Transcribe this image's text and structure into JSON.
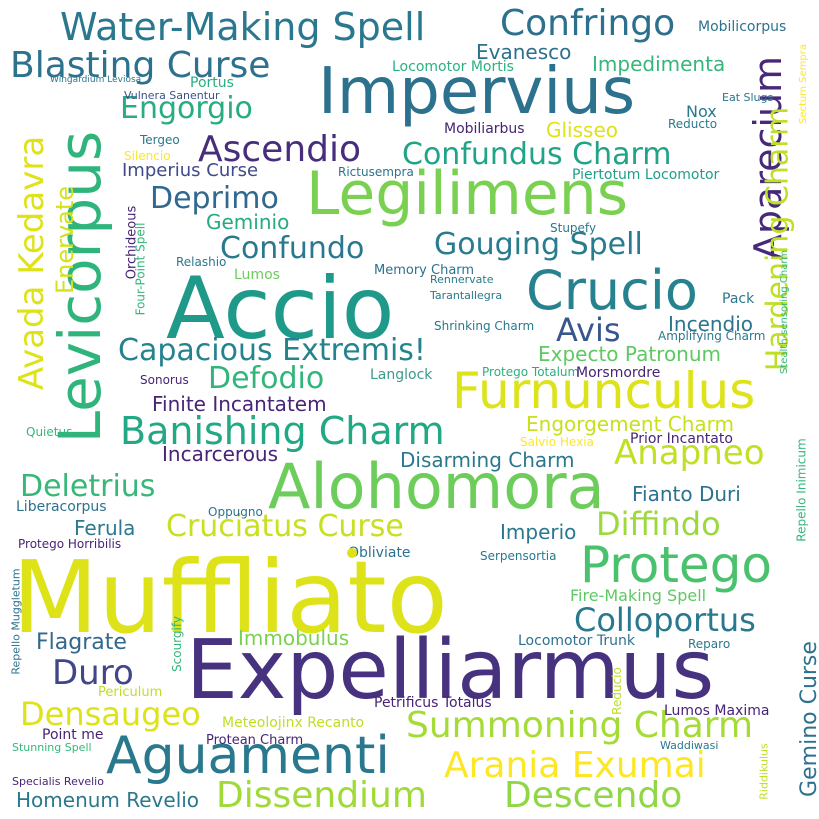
{
  "words": [
    {
      "text": "Muffliato",
      "color": "#dde318"
    },
    {
      "text": "Expelliarmus",
      "color": "#46327e"
    },
    {
      "text": "Accio",
      "color": "#1f9a8a"
    },
    {
      "text": "Levicorpus",
      "color": "#2fb47c"
    },
    {
      "text": "Legilimens",
      "color": "#7ad151"
    },
    {
      "text": "Alohomora",
      "color": "#6ccd5a"
    },
    {
      "text": "Impervius",
      "color": "#2c728e"
    },
    {
      "text": "Furnunculus",
      "color": "#dde318"
    },
    {
      "text": "Crucio",
      "color": "#26828e"
    },
    {
      "text": "Protego",
      "color": "#4ac16d"
    },
    {
      "text": "Aguamenti",
      "color": "#2a788e"
    },
    {
      "text": "Water-Making Spell",
      "color": "#2a788e"
    },
    {
      "text": "Blasting Curse",
      "color": "#2c728e"
    },
    {
      "text": "Confringo",
      "color": "#2d708e"
    },
    {
      "text": "Avada Kedavra",
      "color": "#dde318"
    },
    {
      "text": "Aparecium",
      "color": "#482878"
    },
    {
      "text": "Hardening Charm",
      "color": "#bddf26"
    },
    {
      "text": "Capacious Extremis!",
      "color": "#25838e"
    },
    {
      "text": "Banishing Charm",
      "color": "#22a884"
    },
    {
      "text": "Summoning Charm",
      "color": "#a5db36"
    },
    {
      "text": "Arania Exumai",
      "color": "#fde725"
    },
    {
      "text": "Dissendium",
      "color": "#a0da39"
    },
    {
      "text": "Descendo",
      "color": "#8fd744"
    },
    {
      "text": "Ascendio",
      "color": "#472d7b"
    },
    {
      "text": "Engorgio",
      "color": "#27ad81"
    },
    {
      "text": "Confundus Charm",
      "color": "#20a386"
    },
    {
      "text": "Gouging Spell",
      "color": "#287c8e"
    },
    {
      "text": "Confundo",
      "color": "#2a788e"
    },
    {
      "text": "Deprimo",
      "color": "#31688e"
    },
    {
      "text": "Avis",
      "color": "#39568c"
    },
    {
      "text": "Cruciatus Curse",
      "color": "#c8e020"
    },
    {
      "text": "Diffindo",
      "color": "#9bd93c"
    },
    {
      "text": "Anapneo",
      "color": "#c2df23"
    },
    {
      "text": "Defodio",
      "color": "#31b57b"
    },
    {
      "text": "Densaugeo",
      "color": "#dde318"
    },
    {
      "text": "Deletrius",
      "color": "#37b878"
    },
    {
      "text": "Colloportus",
      "color": "#2a788e"
    },
    {
      "text": "Duro",
      "color": "#404688"
    },
    {
      "text": "Evanesco",
      "color": "#2d708e"
    },
    {
      "text": "Impedimenta",
      "color": "#35b779"
    },
    {
      "text": "Enervate",
      "color": "#d5e21a"
    },
    {
      "text": "Gemino Curse",
      "color": "#2d718e"
    },
    {
      "text": "Glisseo",
      "color": "#dde318"
    },
    {
      "text": "Imperius Curse",
      "color": "#3e4a89"
    },
    {
      "text": "Geminio",
      "color": "#25ab82"
    },
    {
      "text": "Incendio",
      "color": "#2b758e"
    },
    {
      "text": "Expecto Patronum",
      "color": "#5ec962"
    },
    {
      "text": "Engorgement Charm",
      "color": "#c8e020"
    },
    {
      "text": "Disarming Charm",
      "color": "#2a788e"
    },
    {
      "text": "Finite Incantatem",
      "color": "#482475"
    },
    {
      "text": "Incarcerous",
      "color": "#482475"
    },
    {
      "text": "Fianto Duri",
      "color": "#2c728e"
    },
    {
      "text": "Imperio",
      "color": "#2a788e"
    },
    {
      "text": "Ferula",
      "color": "#2a788e"
    },
    {
      "text": "Flagrate",
      "color": "#31688e"
    },
    {
      "text": "Immobulus",
      "color": "#7ad151"
    },
    {
      "text": "Fire-Making Spell",
      "color": "#5ec962"
    },
    {
      "text": "Homenum Revelio",
      "color": "#2a788e"
    },
    {
      "text": "Mobilicorpus",
      "color": "#2c728e"
    },
    {
      "text": "Locomotor Mortis",
      "color": "#2ab07f"
    },
    {
      "text": "Portus",
      "color": "#27ad81"
    },
    {
      "text": "Vulnera Sanentur",
      "color": "#3b528b"
    },
    {
      "text": "Wingardium Leviosa",
      "color": "#2a788e"
    },
    {
      "text": "Nox",
      "color": "#2a788e"
    },
    {
      "text": "Eat Slugs",
      "color": "#2c728e"
    },
    {
      "text": "Sectum Sempra",
      "color": "#fde725"
    },
    {
      "text": "Reducto",
      "color": "#2a788e"
    },
    {
      "text": "Mobiliarbus",
      "color": "#482475"
    },
    {
      "text": "Tergeo",
      "color": "#2a788e"
    },
    {
      "text": "Silencio",
      "color": "#fde725"
    },
    {
      "text": "Rictusempra",
      "color": "#2c728e"
    },
    {
      "text": "Piertotum Locomotor",
      "color": "#1f9e89"
    },
    {
      "text": "Stupefy",
      "color": "#2a788e"
    },
    {
      "text": "Four-Point Spell",
      "color": "#35b779"
    },
    {
      "text": "Orchideous",
      "color": "#482475"
    },
    {
      "text": "Relashio",
      "color": "#2a788e"
    },
    {
      "text": "Lumos",
      "color": "#6ccd5a"
    },
    {
      "text": "Memory Charm",
      "color": "#2c728e"
    },
    {
      "text": "Rennervate",
      "color": "#2a788e"
    },
    {
      "text": "Tarantallegra",
      "color": "#2a788e"
    },
    {
      "text": "Pack",
      "color": "#2a788e"
    },
    {
      "text": "Amplifying Charm",
      "color": "#2a788e"
    },
    {
      "text": "Shrinking Charm",
      "color": "#2a788e"
    },
    {
      "text": "Stealth-sensoring Charm",
      "color": "#35b779"
    },
    {
      "text": "Sonorus",
      "color": "#482475"
    },
    {
      "text": "Langlock",
      "color": "#3b9a8a"
    },
    {
      "text": "Protego Totalum",
      "color": "#2ab07f"
    },
    {
      "text": "Morsmordre",
      "color": "#482475"
    },
    {
      "text": "Quietus",
      "color": "#35b779"
    },
    {
      "text": "Salvio Hexia",
      "color": "#fde725"
    },
    {
      "text": "Prior Incantato",
      "color": "#482475"
    },
    {
      "text": "Repello Inimicum",
      "color": "#35b779"
    },
    {
      "text": "Liberacorpus",
      "color": "#2c728e"
    },
    {
      "text": "Oppugno",
      "color": "#2c728e"
    },
    {
      "text": "Protego Horribilis",
      "color": "#482475"
    },
    {
      "text": "Obliviate",
      "color": "#2c728e"
    },
    {
      "text": "Serpensortia",
      "color": "#2a788e"
    },
    {
      "text": "Repello Muggletum",
      "color": "#2c728e"
    },
    {
      "text": "Scourgify",
      "color": "#35b779"
    },
    {
      "text": "Locomotor Trunk",
      "color": "#2c728e"
    },
    {
      "text": "Reparo",
      "color": "#2a788e"
    },
    {
      "text": "Periculum",
      "color": "#bddf26"
    },
    {
      "text": "Reducio",
      "color": "#bddf26"
    },
    {
      "text": "Petrificus Totalus",
      "color": "#482475"
    },
    {
      "text": "Lumos Maxima",
      "color": "#482475"
    },
    {
      "text": "Meteolojinx Recanto",
      "color": "#bddf26"
    },
    {
      "text": "Point me",
      "color": "#482475"
    },
    {
      "text": "Protean Charm",
      "color": "#482475"
    },
    {
      "text": "Stunning Spell",
      "color": "#35b779"
    },
    {
      "text": "Waddiwasi",
      "color": "#2a788e"
    },
    {
      "text": "Riddikulus",
      "color": "#bddf26"
    },
    {
      "text": "Specialis Revelio",
      "color": "#482475"
    }
  ]
}
